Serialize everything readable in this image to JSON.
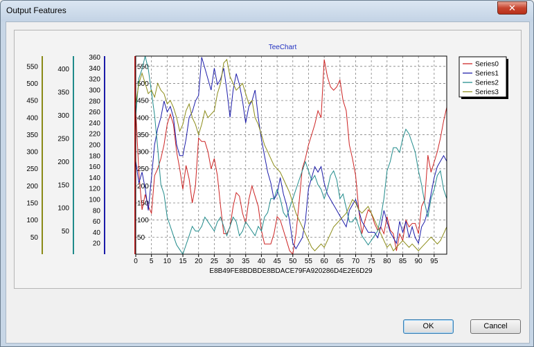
{
  "window": {
    "title": "Output Features",
    "close_glyph": "✕"
  },
  "buttons": {
    "ok_label": "OK",
    "cancel_label": "Cancel"
  },
  "colors": {
    "series0": "#cc2222",
    "series1": "#1a1aa8",
    "series2": "#1f8a8a",
    "series3": "#8a8a16"
  },
  "chart_data": {
    "type": "line",
    "title": "TeeChart",
    "xlabel": "E8B49FE8BDBDE8BDACE79FA920286D4E2E6D29",
    "xlim": [
      0,
      99
    ],
    "x_ticks": [
      "0",
      "5",
      "10",
      "15",
      "20",
      "25",
      "30",
      "35",
      "40",
      "45",
      "50",
      "55",
      "60",
      "65",
      "70",
      "75",
      "80",
      "85",
      "90",
      "95"
    ],
    "grid": true,
    "legend_position": "right",
    "axes": [
      {
        "name": "axis-series0",
        "color": "#cc2222",
        "ylim": [
          0,
          580
        ],
        "ticks": [
          "50",
          "100",
          "150",
          "200",
          "250",
          "300",
          "350",
          "400",
          "450",
          "500",
          "550"
        ]
      },
      {
        "name": "axis-series1",
        "color": "#1a1aa8",
        "ylim": [
          0,
          362
        ],
        "ticks": [
          "20",
          "40",
          "60",
          "80",
          "100",
          "120",
          "140",
          "160",
          "180",
          "200",
          "220",
          "240",
          "260",
          "280",
          "300",
          "320",
          "340",
          "360"
        ]
      },
      {
        "name": "axis-series2",
        "color": "#1f8a8a",
        "ylim": [
          0,
          428
        ],
        "ticks": [
          "50",
          "100",
          "150",
          "200",
          "250",
          "300",
          "350",
          "400"
        ]
      },
      {
        "name": "axis-series3",
        "color": "#8a8a16",
        "ylim": [
          0,
          580
        ],
        "ticks": [
          "50",
          "100",
          "150",
          "200",
          "250",
          "300",
          "350",
          "400",
          "450",
          "500",
          "550"
        ]
      }
    ],
    "series": [
      {
        "name": "Series0",
        "color": "#cc2222",
        "axis": 0,
        "values": [
          420,
          240,
          130,
          175,
          140,
          120,
          230,
          250,
          280,
          320,
          380,
          410,
          380,
          300,
          250,
          190,
          260,
          220,
          150,
          200,
          340,
          330,
          330,
          300,
          250,
          280,
          230,
          140,
          60,
          60,
          80,
          140,
          180,
          170,
          120,
          90,
          160,
          200,
          170,
          140,
          70,
          30,
          30,
          30,
          60,
          110,
          100,
          70,
          40,
          10,
          0,
          60,
          150,
          250,
          280,
          320,
          350,
          380,
          420,
          400,
          570,
          520,
          490,
          480,
          490,
          510,
          450,
          420,
          320,
          280,
          230,
          130,
          60,
          100,
          130,
          120,
          90,
          70,
          80,
          60,
          110,
          70,
          60,
          10,
          60,
          40,
          100,
          80,
          90,
          90,
          60,
          140,
          160,
          290,
          240,
          270,
          300,
          340,
          390,
          430
        ]
      },
      {
        "name": "Series1",
        "color": "#1a1aa8",
        "axis": 1,
        "values": [
          170,
          130,
          150,
          120,
          80,
          140,
          200,
          230,
          250,
          280,
          260,
          270,
          250,
          200,
          180,
          180,
          210,
          250,
          260,
          280,
          290,
          360,
          340,
          320,
          300,
          340,
          310,
          320,
          340,
          300,
          250,
          300,
          330,
          310,
          280,
          240,
          270,
          280,
          300,
          250,
          210,
          180,
          150,
          130,
          100,
          110,
          140,
          110,
          90,
          60,
          20,
          10,
          20,
          30,
          60,
          120,
          140,
          160,
          150,
          160,
          130,
          110,
          100,
          90,
          80,
          70,
          60,
          50,
          80,
          90,
          100,
          80,
          60,
          50,
          40,
          40,
          40,
          30,
          50,
          80,
          60,
          40,
          30,
          20,
          60,
          40,
          60,
          30,
          50,
          30,
          20,
          50,
          60,
          80,
          110,
          140,
          160,
          170,
          180,
          170
        ]
      },
      {
        "name": "Series2",
        "color": "#1f8a8a",
        "axis": 2,
        "values": [
          300,
          380,
          400,
          428,
          400,
          350,
          300,
          230,
          150,
          130,
          80,
          60,
          40,
          20,
          10,
          0,
          20,
          40,
          60,
          50,
          50,
          60,
          80,
          70,
          60,
          50,
          70,
          80,
          60,
          40,
          60,
          80,
          70,
          40,
          50,
          70,
          60,
          50,
          40,
          60,
          50,
          80,
          90,
          120,
          120,
          140,
          120,
          90,
          80,
          100,
          120,
          140,
          160,
          180,
          200,
          180,
          160,
          170,
          150,
          140,
          120,
          140,
          170,
          180,
          160,
          120,
          130,
          100,
          70,
          70,
          80,
          60,
          40,
          30,
          20,
          30,
          40,
          50,
          80,
          120,
          180,
          200,
          230,
          230,
          220,
          250,
          270,
          260,
          240,
          220,
          180,
          150,
          110,
          80,
          120,
          140,
          170,
          180,
          140,
          120
        ]
      },
      {
        "name": "Series3",
        "color": "#8a8a16",
        "axis": 3,
        "values": [
          440,
          500,
          530,
          500,
          470,
          480,
          460,
          500,
          480,
          470,
          440,
          450,
          430,
          400,
          360,
          380,
          420,
          440,
          400,
          380,
          350,
          380,
          420,
          400,
          410,
          420,
          470,
          500,
          560,
          570,
          520,
          500,
          480,
          490,
          500,
          470,
          440,
          450,
          400,
          380,
          350,
          320,
          300,
          280,
          260,
          250,
          240,
          220,
          200,
          180,
          150,
          120,
          100,
          80,
          60,
          40,
          20,
          10,
          20,
          30,
          20,
          40,
          60,
          80,
          90,
          100,
          110,
          120,
          140,
          160,
          150,
          130,
          120,
          130,
          140,
          120,
          100,
          80,
          60,
          40,
          20,
          30,
          10,
          20,
          30,
          40,
          30,
          20,
          30,
          20,
          10,
          20,
          30,
          40,
          50,
          40,
          30,
          40,
          60,
          80
        ]
      }
    ]
  }
}
